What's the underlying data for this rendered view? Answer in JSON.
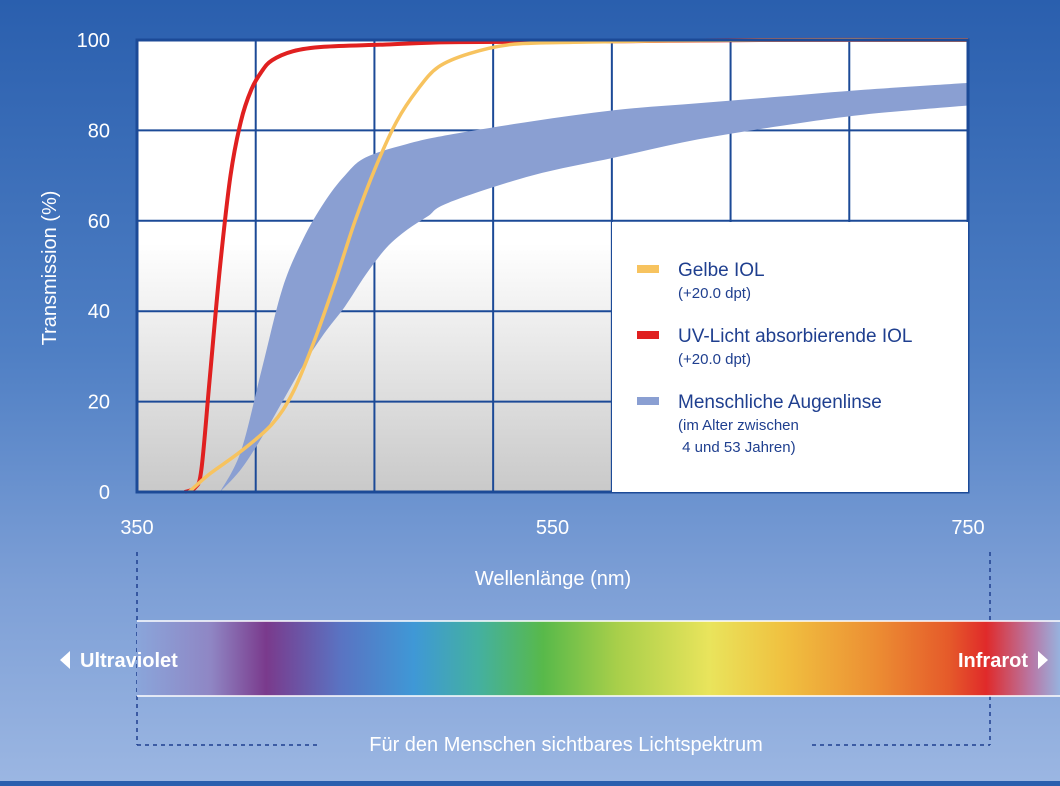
{
  "chart_data": {
    "type": "line",
    "xlabel": "Wellenlänge (nm)",
    "ylabel": "Transmission (%)",
    "xlim": [
      350,
      750
    ],
    "ylim": [
      0,
      100
    ],
    "x_ticks": [
      "350",
      "550",
      "750"
    ],
    "y_ticks": [
      "0",
      "20",
      "40",
      "60",
      "80",
      "100"
    ],
    "grid": true,
    "legend_position": "right",
    "series": [
      {
        "name": "Gelbe IOL",
        "note": "(+20.0 dpt)",
        "color": "#f7c35f",
        "kind": "line",
        "points": [
          [
            375,
            0
          ],
          [
            385,
            4
          ],
          [
            400,
            9
          ],
          [
            415,
            15
          ],
          [
            425,
            22
          ],
          [
            435,
            33
          ],
          [
            445,
            46
          ],
          [
            455,
            60
          ],
          [
            465,
            72
          ],
          [
            475,
            82
          ],
          [
            485,
            89
          ],
          [
            495,
            94
          ],
          [
            510,
            97
          ],
          [
            530,
            99
          ],
          [
            560,
            99.5
          ],
          [
            600,
            99.8
          ],
          [
            650,
            100
          ],
          [
            750,
            100
          ]
        ]
      },
      {
        "name": "UV-Licht absorbierende IOL",
        "note": "(+20.0 dpt)",
        "color": "#e02020",
        "kind": "line",
        "points": [
          [
            373,
            0
          ],
          [
            378,
            1
          ],
          [
            381,
            5
          ],
          [
            385,
            25
          ],
          [
            390,
            50
          ],
          [
            395,
            70
          ],
          [
            400,
            82
          ],
          [
            405,
            89
          ],
          [
            410,
            93
          ],
          [
            415,
            95.5
          ],
          [
            425,
            97.5
          ],
          [
            440,
            98.5
          ],
          [
            470,
            99
          ],
          [
            500,
            99.5
          ],
          [
            550,
            99.6
          ],
          [
            600,
            99.8
          ],
          [
            650,
            100
          ],
          [
            750,
            100
          ]
        ]
      },
      {
        "name": "Menschliche Augenlinse",
        "note": "(im Alter zwischen\n 4 und 53 Jahren)",
        "color": "#8a9fd2",
        "kind": "band",
        "upper": [
          [
            390,
            0
          ],
          [
            400,
            9
          ],
          [
            410,
            27
          ],
          [
            420,
            45
          ],
          [
            430,
            56
          ],
          [
            440,
            64
          ],
          [
            450,
            70
          ],
          [
            460,
            74
          ],
          [
            480,
            77
          ],
          [
            500,
            79
          ],
          [
            540,
            82
          ],
          [
            580,
            84.5
          ],
          [
            620,
            86
          ],
          [
            660,
            87.5
          ],
          [
            700,
            89
          ],
          [
            750,
            90.5
          ]
        ],
        "lower": [
          [
            390,
            0
          ],
          [
            400,
            5
          ],
          [
            410,
            12
          ],
          [
            420,
            20
          ],
          [
            430,
            28
          ],
          [
            440,
            35
          ],
          [
            450,
            41
          ],
          [
            460,
            48
          ],
          [
            470,
            54
          ],
          [
            480,
            58
          ],
          [
            490,
            61
          ],
          [
            500,
            64
          ],
          [
            540,
            70
          ],
          [
            580,
            74
          ],
          [
            620,
            78
          ],
          [
            660,
            81
          ],
          [
            700,
            83.5
          ],
          [
            750,
            85.5
          ]
        ]
      }
    ]
  },
  "legend": {
    "items": [
      {
        "label": "Gelbe IOL",
        "sub1": "(+20.0 dpt)",
        "sub2": "",
        "color": "#f7c35f"
      },
      {
        "label": "UV-Licht absorbierende IOL",
        "sub1": "(+20.0 dpt)",
        "sub2": "",
        "color": "#e02020"
      },
      {
        "label": "Menschliche Augenlinse",
        "sub1": "(im Alter zwischen",
        "sub2": " 4 und 53 Jahren)",
        "color": "#8a9fd2"
      }
    ]
  },
  "spectrum": {
    "left_label": "Ultraviolet",
    "right_label": "Infrarot",
    "caption": "Für den Menschen sichtbares Lichtspektrum"
  }
}
